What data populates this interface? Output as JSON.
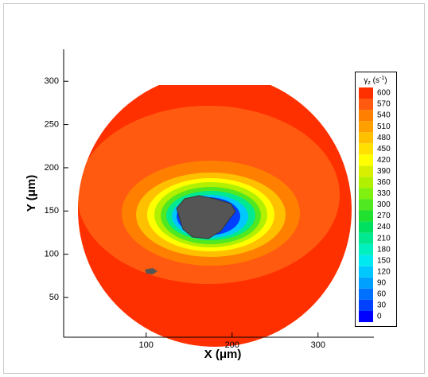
{
  "chart_data": {
    "type": "contour",
    "x_label": "X (μm)",
    "y_label": "Y (μm)",
    "xlim": [
      4,
      365
    ],
    "ylim": [
      4,
      337
    ],
    "xticks": [
      100,
      200,
      300
    ],
    "yticks": [
      50,
      100,
      150,
      200,
      250,
      300
    ],
    "colorbar": {
      "title": [
        "γ",
        "z",
        " (s",
        "-1",
        ")"
      ],
      "levels": [
        0,
        30,
        60,
        90,
        120,
        150,
        180,
        210,
        240,
        270,
        300,
        330,
        360,
        390,
        420,
        450,
        480,
        510,
        540,
        570,
        600
      ],
      "colors": [
        "#0000ff",
        "#0040ff",
        "#0070ff",
        "#00a0ff",
        "#00c8ff",
        "#00e8f0",
        "#00f0c0",
        "#00e890",
        "#00e060",
        "#20e030",
        "#50e820",
        "#80f010",
        "#b0f000",
        "#d8f000",
        "#ffff00",
        "#ffe000",
        "#ffc000",
        "#ffa000",
        "#ff8000",
        "#ff5a10",
        "#ff3000"
      ]
    }
  }
}
